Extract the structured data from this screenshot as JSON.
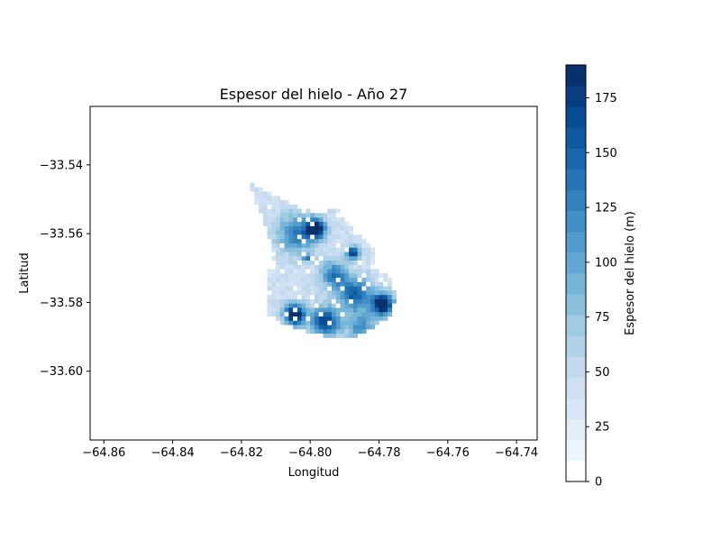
{
  "chart_data": {
    "type": "heatmap",
    "title": "Espesor del hielo - Año 27",
    "xlabel": "Longitud",
    "ylabel": "Latitud",
    "xlim": [
      -64.864,
      -64.734
    ],
    "ylim": [
      -33.62,
      -33.523
    ],
    "xticks": [
      {
        "value": -64.86,
        "label": "−64.86"
      },
      {
        "value": -64.84,
        "label": "−64.84"
      },
      {
        "value": -64.82,
        "label": "−64.82"
      },
      {
        "value": -64.8,
        "label": "−64.80"
      },
      {
        "value": -64.78,
        "label": "−64.78"
      },
      {
        "value": -64.76,
        "label": "−64.76"
      },
      {
        "value": -64.74,
        "label": "−64.74"
      }
    ],
    "yticks": [
      {
        "value": -33.54,
        "label": "−33.54"
      },
      {
        "value": -33.56,
        "label": "−33.56"
      },
      {
        "value": -33.58,
        "label": "−33.58"
      },
      {
        "value": -33.6,
        "label": "−33.60"
      }
    ],
    "colorbar": {
      "label": "Espesor del hielo (m)",
      "range": [
        0,
        190
      ],
      "levels": 20,
      "colormap": "Blues",
      "ticks": [
        {
          "value": 0,
          "label": "0"
        },
        {
          "value": 25,
          "label": "25"
        },
        {
          "value": 50,
          "label": "50"
        },
        {
          "value": 75,
          "label": "75"
        },
        {
          "value": 100,
          "label": "100"
        },
        {
          "value": 125,
          "label": "125"
        },
        {
          "value": 150,
          "label": "150"
        },
        {
          "value": 175,
          "label": "175"
        }
      ]
    },
    "field": {
      "cell_size_deg": 0.00125,
      "outline": [
        [
          -64.818,
          -33.545
        ],
        [
          -64.812,
          -33.548
        ],
        [
          -64.806,
          -33.551
        ],
        [
          -64.799,
          -33.554
        ],
        [
          -64.792,
          -33.553
        ],
        [
          -64.789,
          -33.557
        ],
        [
          -64.785,
          -33.561
        ],
        [
          -64.781,
          -33.565
        ],
        [
          -64.782,
          -33.57
        ],
        [
          -64.777,
          -33.572
        ],
        [
          -64.775,
          -33.578
        ],
        [
          -64.777,
          -33.584
        ],
        [
          -64.783,
          -33.588
        ],
        [
          -64.79,
          -33.591
        ],
        [
          -64.8,
          -33.589
        ],
        [
          -64.808,
          -33.586
        ],
        [
          -64.813,
          -33.583
        ],
        [
          -64.813,
          -33.574
        ],
        [
          -64.811,
          -33.567
        ],
        [
          -64.812,
          -33.56
        ],
        [
          -64.815,
          -33.553
        ]
      ],
      "blobs": [
        {
          "lon": -64.7985,
          "lat": -33.5585,
          "amp": 165,
          "r": 0.0028
        },
        {
          "lon": -64.7875,
          "lat": -33.5655,
          "amp": 140,
          "r": 0.0018
        },
        {
          "lon": -64.8045,
          "lat": -33.5835,
          "amp": 175,
          "r": 0.003
        },
        {
          "lon": -64.779,
          "lat": -33.5805,
          "amp": 170,
          "r": 0.0032
        },
        {
          "lon": -64.7955,
          "lat": -33.5855,
          "amp": 135,
          "r": 0.004
        },
        {
          "lon": -64.787,
          "lat": -33.5775,
          "amp": 110,
          "r": 0.0045
        },
        {
          "lon": -64.804,
          "lat": -33.56,
          "amp": 85,
          "r": 0.0055
        },
        {
          "lon": -64.793,
          "lat": -33.572,
          "amp": 90,
          "r": 0.004
        },
        {
          "lon": -64.801,
          "lat": -33.567,
          "amp": 95,
          "r": 0.0012
        },
        {
          "lon": -64.785,
          "lat": -33.587,
          "amp": 75,
          "r": 0.004
        }
      ],
      "base_value": 35
    }
  }
}
